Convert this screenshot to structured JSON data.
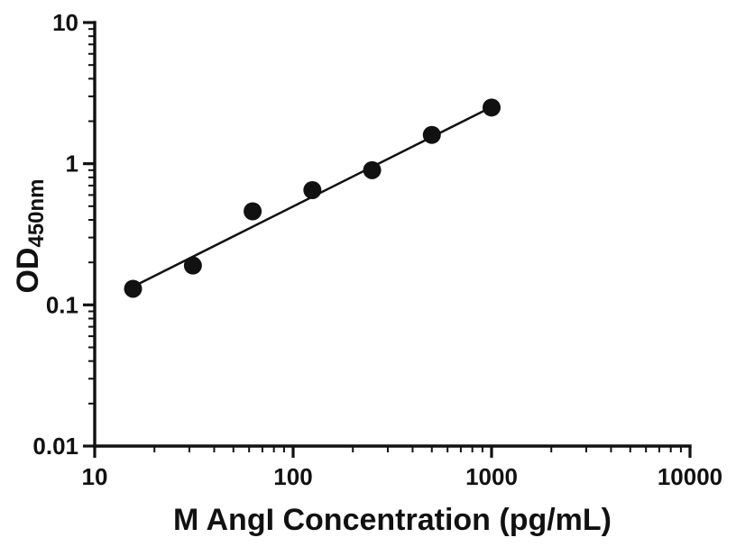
{
  "chart_data": {
    "type": "scatter",
    "title": "",
    "xlabel": "M AngI Concentration (pg/mL)",
    "ylabel_main": "OD",
    "ylabel_sub": "450nm",
    "xscale": "log",
    "yscale": "log",
    "xlim": [
      10,
      10000
    ],
    "ylim": [
      0.01,
      10
    ],
    "x": [
      15.6,
      31.25,
      62.5,
      125,
      250,
      500,
      1000
    ],
    "y": [
      0.13,
      0.19,
      0.46,
      0.65,
      0.9,
      1.6,
      2.5
    ],
    "trendline": {
      "x": [
        14.2,
        1000
      ],
      "y": [
        0.126,
        2.52
      ]
    },
    "x_ticks": [
      10,
      100,
      1000,
      10000
    ],
    "x_tick_labels": [
      "10",
      "100",
      "1000",
      "10000"
    ],
    "y_ticks": [
      0.01,
      0.1,
      1,
      10
    ],
    "y_tick_labels": [
      "0.01",
      "0.1",
      "1",
      "10"
    ],
    "grid": false,
    "legend": "none",
    "marker_color": "#111111",
    "line_color": "#111111",
    "axis_color": "#111111",
    "background": "#ffffff"
  }
}
